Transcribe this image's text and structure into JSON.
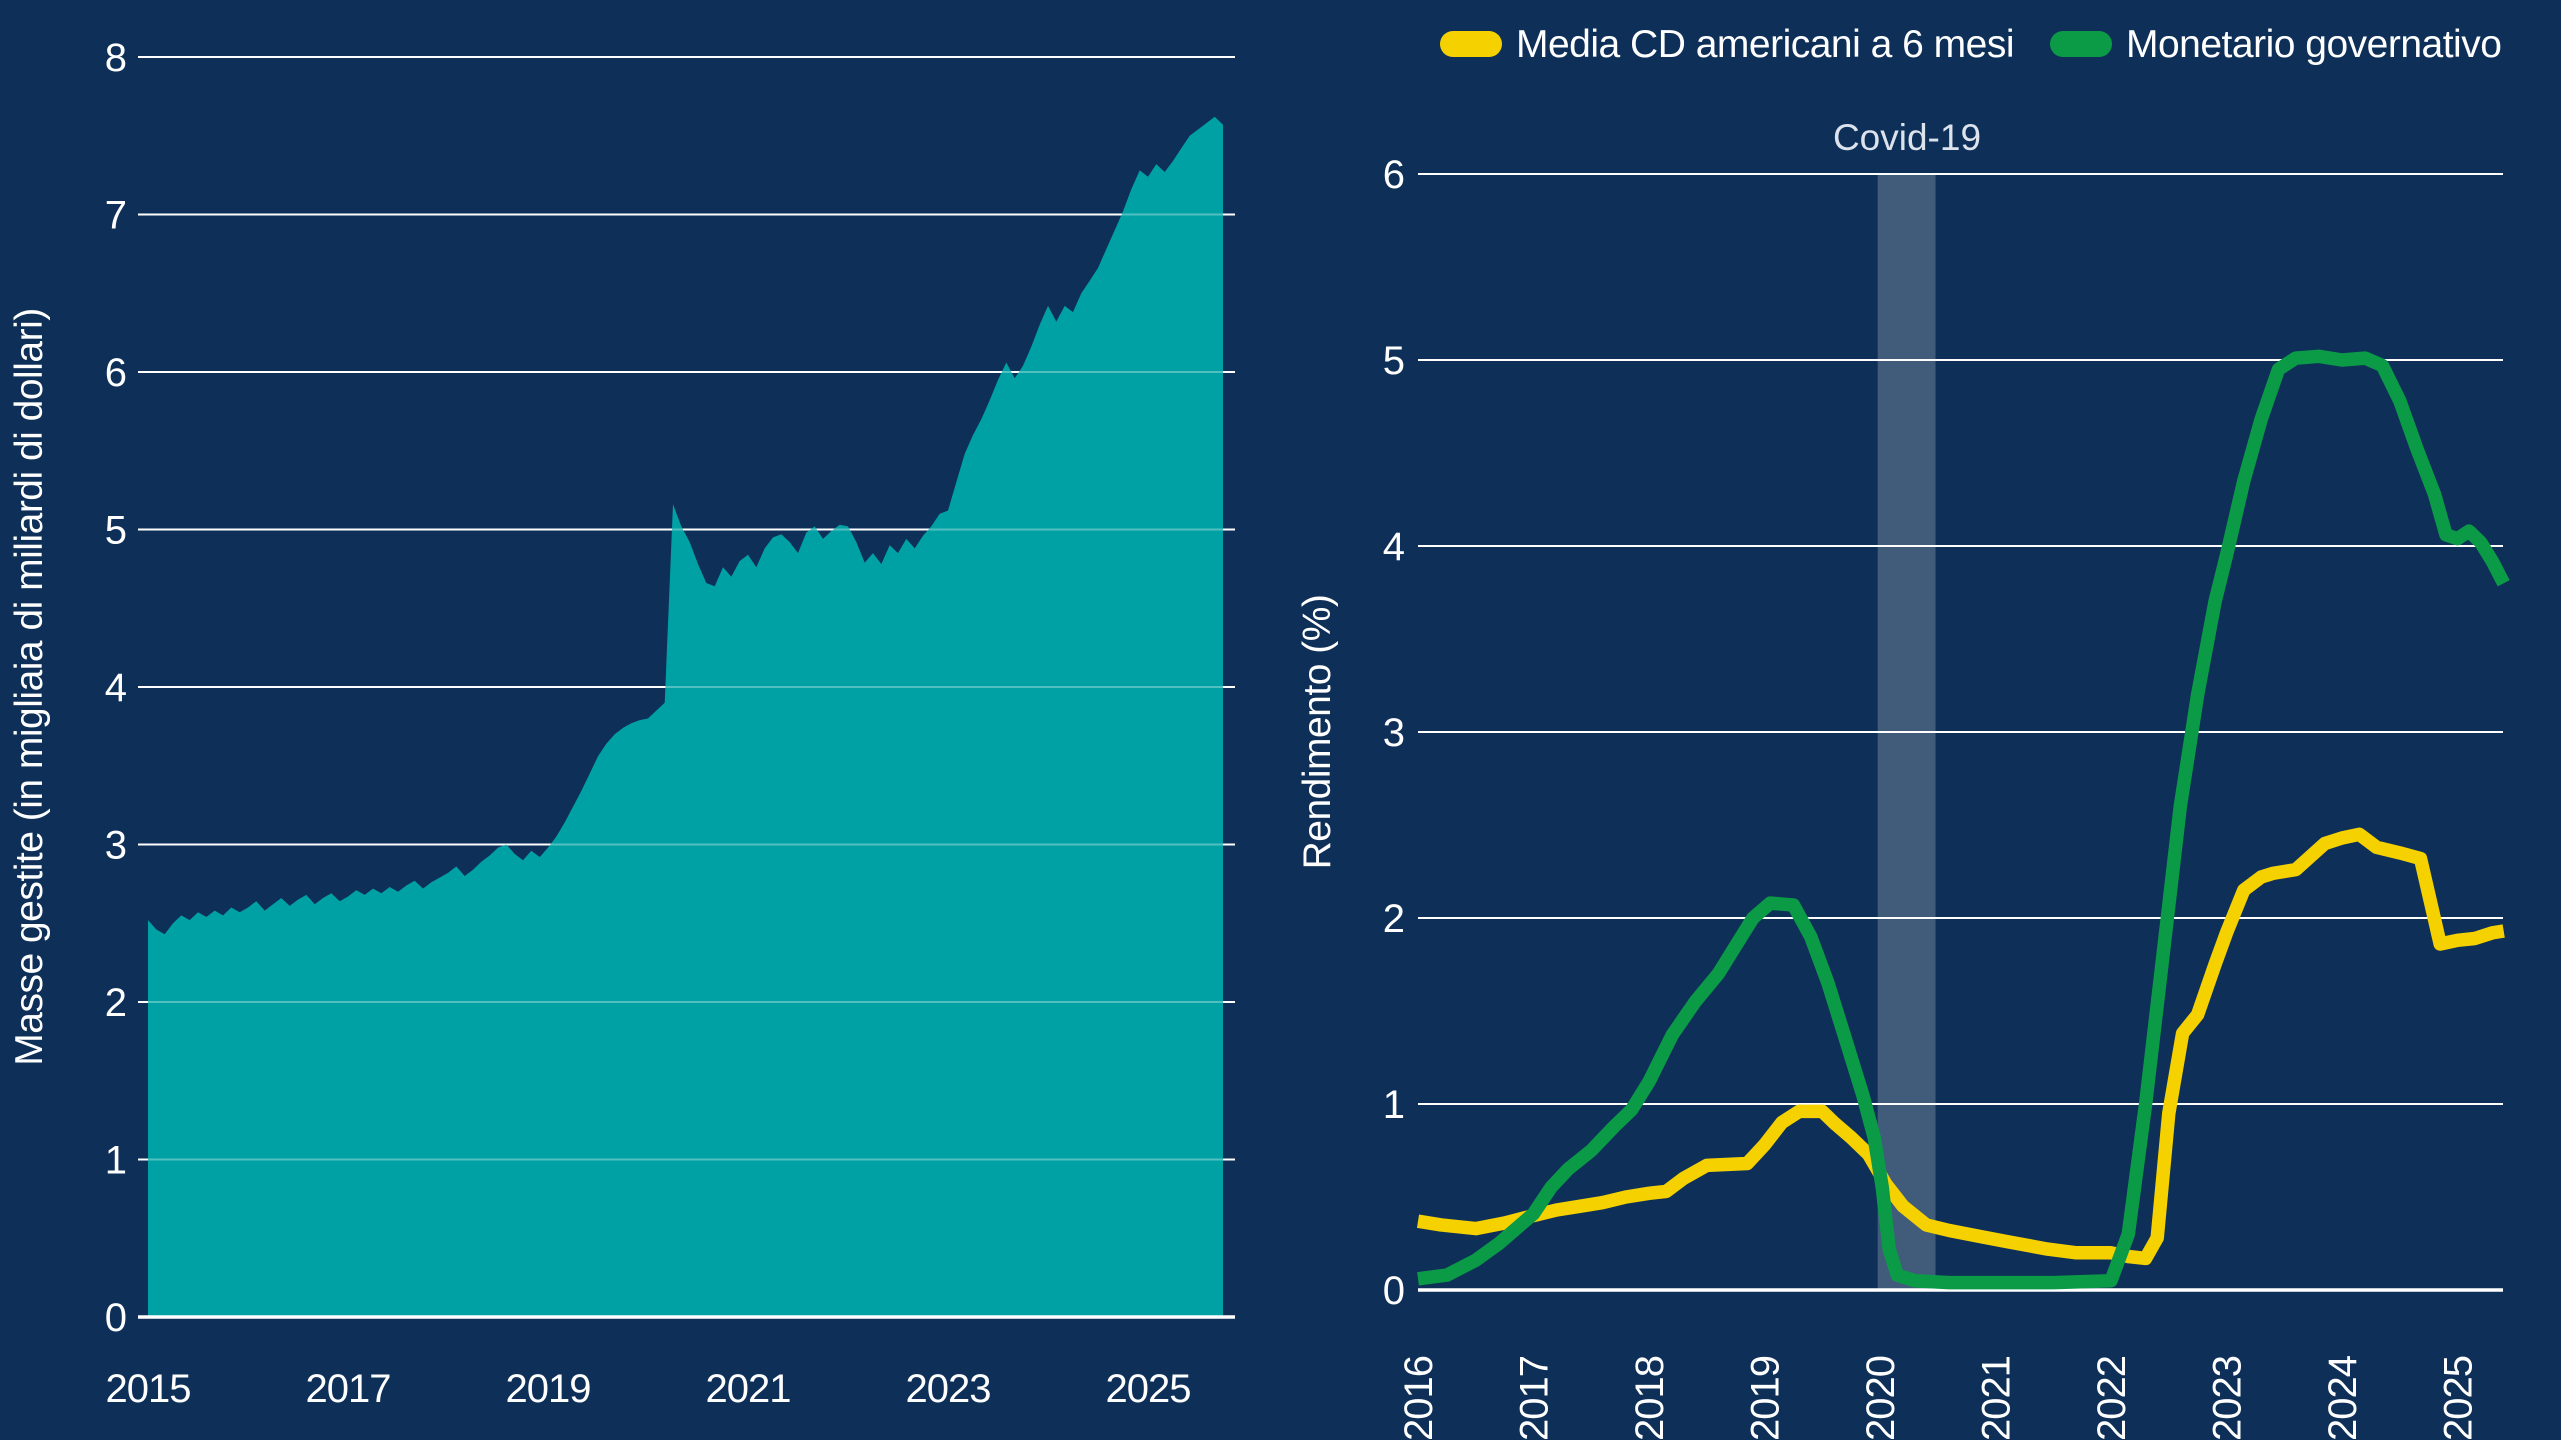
{
  "page": {
    "background_color": "#0E3058",
    "text_color": "#FFFFFF",
    "gridline_color": "#FFFFFF"
  },
  "left_chart": {
    "y_axis_title": "Masse gestite (in migliaia di miliardi di dollari)",
    "y_tick_labels": [
      "0",
      "1",
      "2",
      "3",
      "4",
      "5",
      "6",
      "7",
      "8"
    ],
    "x_tick_labels": [
      "2015",
      "2017",
      "2019",
      "2021",
      "2023",
      "2025"
    ],
    "area_color": "#00A1A4"
  },
  "right_chart": {
    "y_axis_title": "Rendimento (%)",
    "y_tick_labels": [
      "0",
      "1",
      "2",
      "3",
      "4",
      "5",
      "6"
    ],
    "x_tick_labels": [
      "2016",
      "2017",
      "2018",
      "2019",
      "2020",
      "2021",
      "2022",
      "2023",
      "2024",
      "2025"
    ],
    "annotation": {
      "label": "Covid-19",
      "band_color": "rgba(255,255,255,0.21)"
    },
    "legend": [
      {
        "label": "Media CD americani a 6 mesi",
        "color": "#F5D100"
      },
      {
        "label": "Monetario governativo",
        "color": "#0B9B47"
      }
    ]
  },
  "chart_data": [
    {
      "type": "area",
      "title": "",
      "ylabel": "Masse gestite (in migliaia di miliardi di dollari)",
      "xlabel": "",
      "ylim": [
        0,
        8
      ],
      "xlim": [
        2015.0,
        2025.88
      ],
      "y_ticks": [
        0,
        1,
        2,
        3,
        4,
        5,
        6,
        7,
        8
      ],
      "x_ticks": [
        2015,
        2017,
        2019,
        2021,
        2023,
        2025
      ],
      "grid": true,
      "color": "#00A1A4",
      "x_start": 2015.0,
      "x_step_years": 0.0833333,
      "values": [
        2.52,
        2.46,
        2.43,
        2.5,
        2.55,
        2.52,
        2.57,
        2.54,
        2.58,
        2.55,
        2.6,
        2.57,
        2.6,
        2.64,
        2.58,
        2.62,
        2.66,
        2.61,
        2.65,
        2.68,
        2.62,
        2.66,
        2.69,
        2.64,
        2.67,
        2.71,
        2.68,
        2.72,
        2.69,
        2.73,
        2.7,
        2.74,
        2.77,
        2.72,
        2.76,
        2.79,
        2.82,
        2.86,
        2.8,
        2.84,
        2.89,
        2.93,
        2.98,
        3.0,
        2.94,
        2.9,
        2.96,
        2.92,
        2.98,
        3.05,
        3.14,
        3.24,
        3.34,
        3.45,
        3.56,
        3.64,
        3.7,
        3.74,
        3.77,
        3.79,
        3.8,
        3.85,
        3.9,
        5.16,
        5.02,
        4.92,
        4.78,
        4.66,
        4.64,
        4.76,
        4.7,
        4.8,
        4.84,
        4.76,
        4.88,
        4.95,
        4.97,
        4.92,
        4.85,
        4.98,
        5.02,
        4.94,
        4.99,
        5.03,
        5.02,
        4.92,
        4.79,
        4.85,
        4.78,
        4.9,
        4.85,
        4.94,
        4.88,
        4.96,
        5.02,
        5.1,
        5.12,
        5.3,
        5.48,
        5.6,
        5.7,
        5.82,
        5.95,
        6.06,
        5.96,
        6.04,
        6.16,
        6.3,
        6.42,
        6.32,
        6.42,
        6.38,
        6.5,
        6.58,
        6.66,
        6.78,
        6.9,
        7.02,
        7.16,
        7.28,
        7.24,
        7.32,
        7.27,
        7.34,
        7.42,
        7.5,
        7.54,
        7.58,
        7.62,
        7.57
      ]
    },
    {
      "type": "line",
      "title": "",
      "ylabel": "Rendimento (%)",
      "xlabel": "",
      "ylim": [
        0,
        6
      ],
      "xlim": [
        2016.0,
        2025.4
      ],
      "y_ticks": [
        0,
        1,
        2,
        3,
        4,
        5,
        6
      ],
      "x_ticks": [
        2016,
        2017,
        2018,
        2019,
        2020,
        2021,
        2022,
        2023,
        2024,
        2025
      ],
      "grid": true,
      "legend_position": "top-right",
      "band": {
        "label": "Covid-19",
        "x_from": 2019.98,
        "x_to": 2020.48
      },
      "series": [
        {
          "name": "Media CD americani a 6 mesi",
          "color": "#F5D100",
          "points": [
            [
              2016.0,
              0.37
            ],
            [
              2016.2,
              0.35
            ],
            [
              2016.5,
              0.33
            ],
            [
              2016.75,
              0.36
            ],
            [
              2017.0,
              0.4
            ],
            [
              2017.2,
              0.43
            ],
            [
              2017.4,
              0.45
            ],
            [
              2017.6,
              0.47
            ],
            [
              2017.8,
              0.5
            ],
            [
              2018.0,
              0.52
            ],
            [
              2018.15,
              0.53
            ],
            [
              2018.3,
              0.6
            ],
            [
              2018.5,
              0.67
            ],
            [
              2018.85,
              0.68
            ],
            [
              2019.0,
              0.78
            ],
            [
              2019.15,
              0.9
            ],
            [
              2019.3,
              0.96
            ],
            [
              2019.5,
              0.96
            ],
            [
              2019.6,
              0.9
            ],
            [
              2019.75,
              0.82
            ],
            [
              2019.9,
              0.73
            ],
            [
              2020.05,
              0.57
            ],
            [
              2020.2,
              0.45
            ],
            [
              2020.4,
              0.35
            ],
            [
              2020.6,
              0.32
            ],
            [
              2020.85,
              0.29
            ],
            [
              2021.1,
              0.26
            ],
            [
              2021.45,
              0.22
            ],
            [
              2021.7,
              0.2
            ],
            [
              2022.0,
              0.2
            ],
            [
              2022.15,
              0.18
            ],
            [
              2022.3,
              0.17
            ],
            [
              2022.4,
              0.28
            ],
            [
              2022.5,
              0.95
            ],
            [
              2022.62,
              1.38
            ],
            [
              2022.75,
              1.48
            ],
            [
              2022.9,
              1.75
            ],
            [
              2023.0,
              1.92
            ],
            [
              2023.15,
              2.15
            ],
            [
              2023.3,
              2.22
            ],
            [
              2023.4,
              2.24
            ],
            [
              2023.6,
              2.26
            ],
            [
              2023.85,
              2.4
            ],
            [
              2024.0,
              2.43
            ],
            [
              2024.15,
              2.45
            ],
            [
              2024.3,
              2.38
            ],
            [
              2024.5,
              2.35
            ],
            [
              2024.68,
              2.32
            ],
            [
              2024.85,
              1.86
            ],
            [
              2025.0,
              1.88
            ],
            [
              2025.15,
              1.89
            ],
            [
              2025.3,
              1.92
            ],
            [
              2025.4,
              1.93
            ]
          ]
        },
        {
          "name": "Monetario governativo",
          "color": "#0B9B47",
          "points": [
            [
              2016.0,
              0.06
            ],
            [
              2016.25,
              0.08
            ],
            [
              2016.5,
              0.16
            ],
            [
              2016.7,
              0.25
            ],
            [
              2016.85,
              0.33
            ],
            [
              2017.0,
              0.41
            ],
            [
              2017.15,
              0.55
            ],
            [
              2017.3,
              0.65
            ],
            [
              2017.5,
              0.75
            ],
            [
              2017.7,
              0.88
            ],
            [
              2017.85,
              0.97
            ],
            [
              2018.0,
              1.12
            ],
            [
              2018.2,
              1.37
            ],
            [
              2018.4,
              1.55
            ],
            [
              2018.6,
              1.7
            ],
            [
              2018.75,
              1.85
            ],
            [
              2018.9,
              2.0
            ],
            [
              2019.05,
              2.08
            ],
            [
              2019.25,
              2.07
            ],
            [
              2019.4,
              1.9
            ],
            [
              2019.55,
              1.65
            ],
            [
              2019.7,
              1.35
            ],
            [
              2019.85,
              1.05
            ],
            [
              2019.95,
              0.82
            ],
            [
              2020.02,
              0.55
            ],
            [
              2020.08,
              0.22
            ],
            [
              2020.15,
              0.08
            ],
            [
              2020.3,
              0.05
            ],
            [
              2020.6,
              0.04
            ],
            [
              2021.0,
              0.04
            ],
            [
              2021.5,
              0.04
            ],
            [
              2022.0,
              0.05
            ],
            [
              2022.15,
              0.3
            ],
            [
              2022.3,
              1.0
            ],
            [
              2022.45,
              1.8
            ],
            [
              2022.6,
              2.6
            ],
            [
              2022.75,
              3.2
            ],
            [
              2022.9,
              3.7
            ],
            [
              2023.0,
              3.95
            ],
            [
              2023.15,
              4.35
            ],
            [
              2023.3,
              4.68
            ],
            [
              2023.45,
              4.95
            ],
            [
              2023.6,
              5.01
            ],
            [
              2023.8,
              5.02
            ],
            [
              2024.0,
              5.0
            ],
            [
              2024.2,
              5.01
            ],
            [
              2024.35,
              4.97
            ],
            [
              2024.5,
              4.78
            ],
            [
              2024.65,
              4.52
            ],
            [
              2024.8,
              4.28
            ],
            [
              2024.9,
              4.06
            ],
            [
              2025.0,
              4.04
            ],
            [
              2025.1,
              4.08
            ],
            [
              2025.2,
              4.02
            ],
            [
              2025.3,
              3.92
            ],
            [
              2025.4,
              3.8
            ]
          ]
        }
      ]
    }
  ]
}
